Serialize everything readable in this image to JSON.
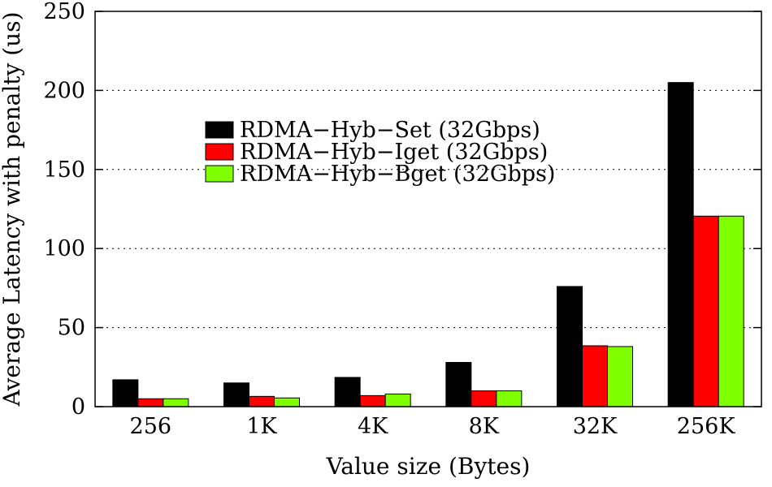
{
  "chart_data": {
    "type": "bar",
    "title": "",
    "xlabel": "Value size (Bytes)",
    "ylabel": "Average Latency with penalty (us)",
    "categories": [
      "256",
      "1K",
      "4K",
      "8K",
      "32K",
      "256K"
    ],
    "ylim": [
      0,
      250
    ],
    "yticks": [
      0,
      50,
      100,
      150,
      200,
      250
    ],
    "grid": "horizontal dotted",
    "legend_position": "upper-left-center",
    "series": [
      {
        "name": "RDMA−Hyb−Set (32Gbps)",
        "color": "#000000",
        "values": [
          17,
          15,
          18.5,
          28,
          76,
          205
        ]
      },
      {
        "name": "RDMA−Hyb−Iget (32Gbps)",
        "color": "#ff0000",
        "values": [
          5,
          6.5,
          7,
          10,
          38.5,
          120.5
        ]
      },
      {
        "name": "RDMA−Hyb−Bget (32Gbps)",
        "color": "#80ff00",
        "values": [
          5,
          5.5,
          8,
          10,
          38,
          120.5
        ]
      }
    ]
  }
}
